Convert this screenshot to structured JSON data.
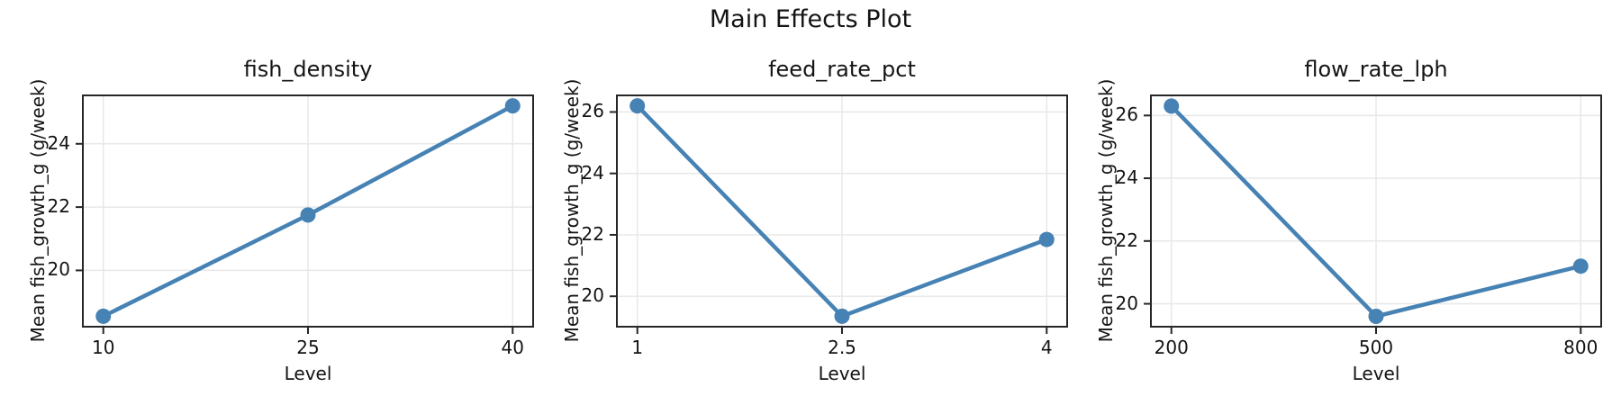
{
  "title": "Main Effects Plot",
  "colors": {
    "line": "#4682B4",
    "marker": "#4682B4",
    "grid": "#e8e8e8",
    "spine": "#262626",
    "text": "#141414",
    "background": "#ffffff"
  },
  "chart_data": [
    {
      "type": "line",
      "title": "fish_density",
      "xlabel": "Level",
      "ylabel": "Mean fish_growth_g (g/week)",
      "x": [
        10,
        25,
        40
      ],
      "x_tick_labels": [
        "10",
        "25",
        "40"
      ],
      "values": [
        18.55,
        21.75,
        25.2
      ],
      "yticks": [
        20,
        22,
        24
      ],
      "xlim": [
        8.5,
        41.5
      ],
      "ylim": [
        18.22,
        25.53
      ],
      "grid": true,
      "legend": "none"
    },
    {
      "type": "line",
      "title": "feed_rate_pct",
      "xlabel": "Level",
      "ylabel": "Mean fish_growth_g (g/week)",
      "x": [
        1,
        2.5,
        4
      ],
      "x_tick_labels": [
        "1",
        "2.5",
        "4"
      ],
      "values": [
        26.2,
        19.35,
        21.85
      ],
      "yticks": [
        20,
        22,
        24,
        26
      ],
      "xlim": [
        0.85,
        4.15
      ],
      "ylim": [
        19.01,
        26.54
      ],
      "grid": true,
      "legend": "none"
    },
    {
      "type": "line",
      "title": "flow_rate_lph",
      "xlabel": "Level",
      "ylabel": "Mean fish_growth_g (g/week)",
      "x": [
        200,
        500,
        800
      ],
      "x_tick_labels": [
        "200",
        "500",
        "800"
      ],
      "values": [
        26.3,
        19.6,
        21.2
      ],
      "yticks": [
        20,
        22,
        24,
        26
      ],
      "xlim": [
        170,
        830
      ],
      "ylim": [
        19.27,
        26.64
      ],
      "grid": true,
      "legend": "none"
    }
  ]
}
